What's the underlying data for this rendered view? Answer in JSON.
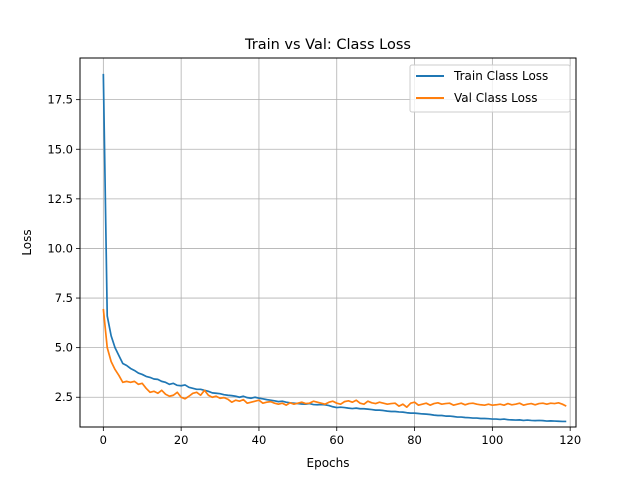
{
  "chart_data": {
    "type": "line",
    "title": "Train vs Val: Class Loss",
    "xlabel": "Epochs",
    "ylabel": "Loss",
    "xlim": [
      -6,
      121.5
    ],
    "ylim": [
      1.0,
      19.6
    ],
    "xticks": [
      0,
      20,
      40,
      60,
      80,
      100,
      120
    ],
    "yticks": [
      2.5,
      5.0,
      7.5,
      10.0,
      12.5,
      15.0,
      17.5
    ],
    "xtick_labels": [
      "0",
      "20",
      "40",
      "60",
      "80",
      "100",
      "120"
    ],
    "ytick_labels": [
      "2.5",
      "5.0",
      "7.5",
      "10.0",
      "12.5",
      "15.0",
      "17.5"
    ],
    "grid": true,
    "legend_position": "top-right",
    "series": [
      {
        "name": "Train Class Loss",
        "color": "#1f77b4",
        "x": [
          0,
          1,
          2,
          3,
          4,
          5,
          6,
          7,
          8,
          9,
          10,
          11,
          12,
          13,
          14,
          15,
          16,
          17,
          18,
          19,
          20,
          21,
          22,
          23,
          24,
          25,
          26,
          27,
          28,
          29,
          30,
          31,
          32,
          33,
          34,
          35,
          36,
          37,
          38,
          39,
          40,
          41,
          42,
          43,
          44,
          45,
          46,
          47,
          48,
          49,
          50,
          51,
          52,
          53,
          54,
          55,
          56,
          57,
          58,
          59,
          60,
          61,
          62,
          63,
          64,
          65,
          66,
          67,
          68,
          69,
          70,
          71,
          72,
          73,
          74,
          75,
          76,
          77,
          78,
          79,
          80,
          81,
          82,
          83,
          84,
          85,
          86,
          87,
          88,
          89,
          90,
          91,
          92,
          93,
          94,
          95,
          96,
          97,
          98,
          99,
          100,
          101,
          102,
          103,
          104,
          105,
          106,
          107,
          108,
          109,
          110,
          111,
          112,
          113,
          114,
          115,
          116,
          117,
          118,
          119
        ],
        "values": [
          18.8,
          6.6,
          5.6,
          5.0,
          4.6,
          4.2,
          4.1,
          3.95,
          3.85,
          3.72,
          3.65,
          3.55,
          3.5,
          3.42,
          3.4,
          3.3,
          3.25,
          3.15,
          3.2,
          3.1,
          3.08,
          3.12,
          3.0,
          2.95,
          2.9,
          2.9,
          2.85,
          2.8,
          2.72,
          2.7,
          2.68,
          2.63,
          2.6,
          2.58,
          2.55,
          2.5,
          2.55,
          2.48,
          2.45,
          2.5,
          2.45,
          2.42,
          2.38,
          2.35,
          2.32,
          2.28,
          2.3,
          2.25,
          2.22,
          2.2,
          2.18,
          2.16,
          2.15,
          2.18,
          2.13,
          2.12,
          2.13,
          2.12,
          2.08,
          2.02,
          1.98,
          2.0,
          1.98,
          1.95,
          1.93,
          1.95,
          1.92,
          1.92,
          1.9,
          1.88,
          1.85,
          1.85,
          1.83,
          1.8,
          1.78,
          1.78,
          1.76,
          1.75,
          1.72,
          1.7,
          1.7,
          1.68,
          1.66,
          1.65,
          1.63,
          1.6,
          1.58,
          1.58,
          1.55,
          1.55,
          1.53,
          1.5,
          1.5,
          1.48,
          1.47,
          1.45,
          1.45,
          1.43,
          1.43,
          1.42,
          1.4,
          1.4,
          1.38,
          1.4,
          1.37,
          1.36,
          1.35,
          1.36,
          1.33,
          1.35,
          1.33,
          1.32,
          1.33,
          1.32,
          1.3,
          1.31,
          1.3,
          1.29,
          1.28,
          1.28
        ]
      },
      {
        "name": "Val Class Loss",
        "color": "#ff7f0e",
        "x": [
          0,
          1,
          2,
          3,
          4,
          5,
          6,
          7,
          8,
          9,
          10,
          11,
          12,
          13,
          14,
          15,
          16,
          17,
          18,
          19,
          20,
          21,
          22,
          23,
          24,
          25,
          26,
          27,
          28,
          29,
          30,
          31,
          32,
          33,
          34,
          35,
          36,
          37,
          38,
          39,
          40,
          41,
          42,
          43,
          44,
          45,
          46,
          47,
          48,
          49,
          50,
          51,
          52,
          53,
          54,
          55,
          56,
          57,
          58,
          59,
          60,
          61,
          62,
          63,
          64,
          65,
          66,
          67,
          68,
          69,
          70,
          71,
          72,
          73,
          74,
          75,
          76,
          77,
          78,
          79,
          80,
          81,
          82,
          83,
          84,
          85,
          86,
          87,
          88,
          89,
          90,
          91,
          92,
          93,
          94,
          95,
          96,
          97,
          98,
          99,
          100,
          101,
          102,
          103,
          104,
          105,
          106,
          107,
          108,
          109,
          110,
          111,
          112,
          113,
          114,
          115,
          116,
          117,
          118,
          119
        ],
        "values": [
          6.95,
          5.0,
          4.3,
          3.9,
          3.6,
          3.25,
          3.3,
          3.25,
          3.3,
          3.15,
          3.2,
          2.95,
          2.75,
          2.8,
          2.7,
          2.85,
          2.65,
          2.55,
          2.6,
          2.75,
          2.5,
          2.42,
          2.55,
          2.7,
          2.75,
          2.6,
          2.85,
          2.6,
          2.5,
          2.55,
          2.45,
          2.48,
          2.4,
          2.25,
          2.35,
          2.3,
          2.38,
          2.2,
          2.25,
          2.3,
          2.35,
          2.2,
          2.25,
          2.28,
          2.2,
          2.15,
          2.2,
          2.1,
          2.22,
          2.15,
          2.2,
          2.25,
          2.18,
          2.2,
          2.3,
          2.25,
          2.2,
          2.15,
          2.25,
          2.3,
          2.2,
          2.15,
          2.28,
          2.32,
          2.25,
          2.35,
          2.2,
          2.15,
          2.3,
          2.22,
          2.18,
          2.25,
          2.2,
          2.15,
          2.18,
          2.2,
          2.05,
          2.15,
          2.0,
          2.2,
          2.25,
          2.1,
          2.15,
          2.2,
          2.1,
          2.18,
          2.22,
          2.15,
          2.18,
          2.2,
          2.1,
          2.15,
          2.2,
          2.12,
          2.18,
          2.2,
          2.15,
          2.12,
          2.1,
          2.15,
          2.1,
          2.12,
          2.15,
          2.1,
          2.18,
          2.12,
          2.15,
          2.2,
          2.1,
          2.15,
          2.18,
          2.12,
          2.18,
          2.2,
          2.15,
          2.2,
          2.18,
          2.22,
          2.15,
          2.05
        ]
      }
    ]
  }
}
